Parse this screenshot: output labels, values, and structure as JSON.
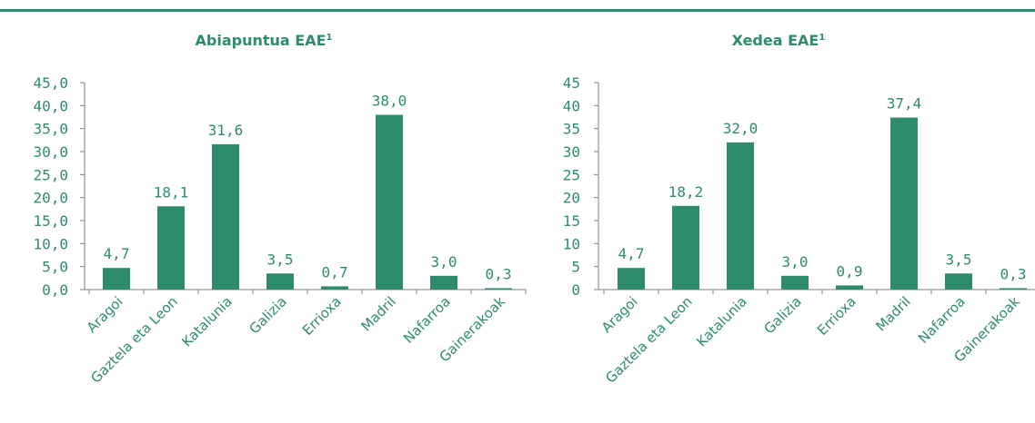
{
  "colors": {
    "accent": "#2e8b6e"
  },
  "chart_data": [
    {
      "type": "bar",
      "title": "Abiapuntua EAE",
      "title_superscript": "1",
      "categories": [
        "Aragoi",
        "Gaztela eta Leon",
        "Katalunia",
        "Galizia",
        "Errioxa",
        "Madril",
        "Nafarroa",
        "Gainerakoak"
      ],
      "values": [
        4.7,
        18.1,
        31.6,
        3.5,
        0.7,
        38.0,
        3.0,
        0.3
      ],
      "value_labels": [
        "4,7",
        "18,1",
        "31,6",
        "3,5",
        "0,7",
        "38,0",
        "3,0",
        "0,3"
      ],
      "ylim": [
        0,
        45
      ],
      "yticks": [
        0,
        5,
        10,
        15,
        20,
        25,
        30,
        35,
        40,
        45
      ],
      "ytick_labels": [
        "0,0",
        "5,0",
        "10,0",
        "15,0",
        "20,0",
        "25,0",
        "30,0",
        "35,0",
        "40,0",
        "45,0"
      ],
      "grid": false,
      "xlabel": "",
      "ylabel": ""
    },
    {
      "type": "bar",
      "title": "Xedea EAE",
      "title_superscript": "1",
      "categories": [
        "Aragoi",
        "Gaztela eta Leon",
        "Katalunia",
        "Galizia",
        "Errioxa",
        "Madril",
        "Nafarroa",
        "Gainerakoak"
      ],
      "values": [
        4.7,
        18.2,
        32.0,
        3.0,
        0.9,
        37.4,
        3.5,
        0.3
      ],
      "value_labels": [
        "4,7",
        "18,2",
        "32,0",
        "3,0",
        "0,9",
        "37,4",
        "3,5",
        "0,3"
      ],
      "ylim": [
        0,
        45
      ],
      "yticks": [
        0,
        5,
        10,
        15,
        20,
        25,
        30,
        35,
        40,
        45
      ],
      "ytick_labels": [
        "0",
        "5",
        "10",
        "15",
        "20",
        "25",
        "30",
        "35",
        "40",
        "45"
      ],
      "grid": false,
      "xlabel": "",
      "ylabel": ""
    }
  ]
}
